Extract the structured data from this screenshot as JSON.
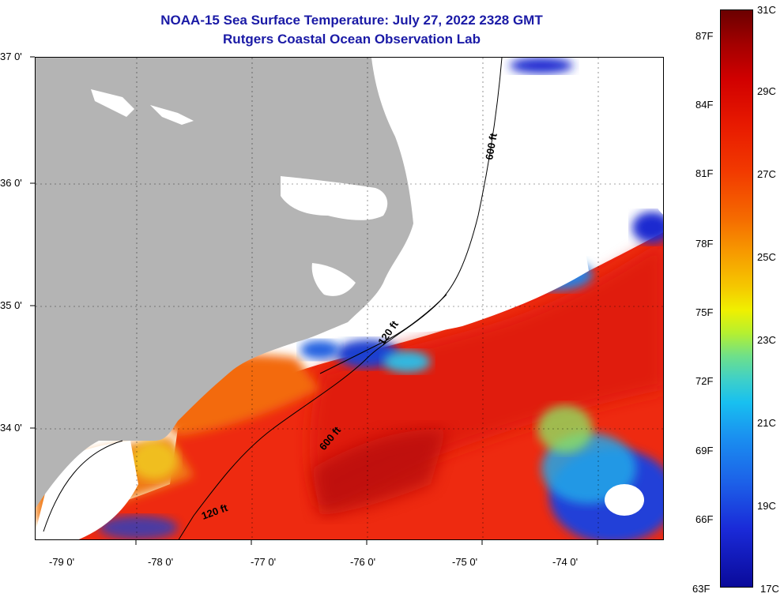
{
  "header": {
    "title": "NOAA-15 Sea Surface Temperature:  July 27, 2022 2328 GMT",
    "subtitle": "Rutgers Coastal Ocean Observation Lab"
  },
  "map": {
    "lat_labels": [
      "37 0'",
      "36 0'",
      "35 0'",
      "34 0'"
    ],
    "lon_labels": [
      "-79 0'",
      "-78 0'",
      "-77 0'",
      "-76 0'",
      "-75 0'",
      "-74 0'"
    ],
    "contours": [
      "600 ft",
      "120 ft",
      "600 ft",
      "120 ft"
    ],
    "land_color": "#b4b4b4",
    "cloud_color": "#ffffff"
  },
  "colorbar": {
    "fahrenheit": [
      "87F",
      "84F",
      "81F",
      "78F",
      "75F",
      "72F",
      "69F",
      "66F",
      "63F"
    ],
    "celsius": [
      "31C",
      "29C",
      "27C",
      "25C",
      "23C",
      "21C",
      "19C",
      "17C"
    ]
  }
}
